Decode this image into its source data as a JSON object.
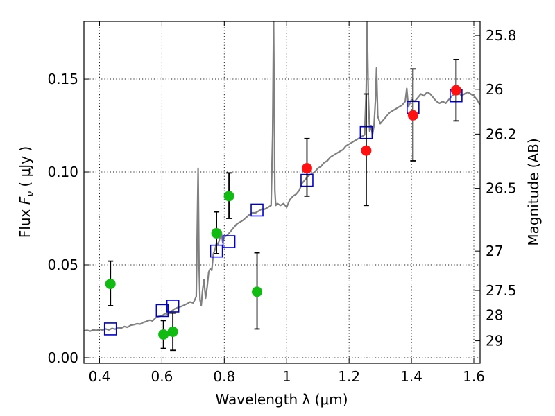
{
  "chart_data": {
    "type": "scatter",
    "xlabel": "Wavelength  λ (μm)",
    "ylabel": "Flux  F_ν  ( μJy )",
    "ylabel_parts": {
      "prefix": "Flux  ",
      "symbol": "F",
      "subscript": "ν",
      "suffix": "  ( μJy )"
    },
    "y2label": "Magnitude (AB)",
    "xlim": [
      0.35,
      1.62
    ],
    "ylim": [
      -0.003,
      0.181
    ],
    "grid": true,
    "x_ticks": [
      {
        "value": 0.4,
        "label": "0.4"
      },
      {
        "value": 0.6,
        "label": "0.6"
      },
      {
        "value": 0.8,
        "label": "0.8"
      },
      {
        "value": 1.0,
        "label": "1"
      },
      {
        "value": 1.2,
        "label": "1.2"
      },
      {
        "value": 1.4,
        "label": "1.4"
      },
      {
        "value": 1.6,
        "label": "1.6"
      }
    ],
    "y_ticks": [
      {
        "value": 0.0,
        "label": "0.00"
      },
      {
        "value": 0.05,
        "label": "0.05"
      },
      {
        "value": 0.1,
        "label": "0.10"
      },
      {
        "value": 0.15,
        "label": "0.15"
      }
    ],
    "y2_ticks": [
      {
        "flux": 0.1735,
        "label": "25.8"
      },
      {
        "flux": 0.1445,
        "label": "26"
      },
      {
        "flux": 0.1204,
        "label": "26.2"
      },
      {
        "flux": 0.0912,
        "label": "26.5"
      },
      {
        "flux": 0.0574,
        "label": "27"
      },
      {
        "flux": 0.0362,
        "label": "27.5"
      },
      {
        "flux": 0.0229,
        "label": "28"
      },
      {
        "flux": 0.0091,
        "label": "29"
      }
    ],
    "series": [
      {
        "type": "line",
        "color": "#808080",
        "points": [
          [
            0.35,
            0.0145
          ],
          [
            0.36,
            0.0148
          ],
          [
            0.37,
            0.0143
          ],
          [
            0.38,
            0.015
          ],
          [
            0.39,
            0.0147
          ],
          [
            0.4,
            0.0152
          ],
          [
            0.41,
            0.0149
          ],
          [
            0.42,
            0.0155
          ],
          [
            0.43,
            0.015
          ],
          [
            0.44,
            0.0158
          ],
          [
            0.45,
            0.0154
          ],
          [
            0.46,
            0.0162
          ],
          [
            0.47,
            0.016
          ],
          [
            0.48,
            0.0168
          ],
          [
            0.49,
            0.0164
          ],
          [
            0.5,
            0.0175
          ],
          [
            0.51,
            0.0178
          ],
          [
            0.52,
            0.0183
          ],
          [
            0.53,
            0.0181
          ],
          [
            0.54,
            0.019
          ],
          [
            0.55,
            0.0195
          ],
          [
            0.56,
            0.0202
          ],
          [
            0.57,
            0.0198
          ],
          [
            0.58,
            0.0215
          ],
          [
            0.59,
            0.0222
          ],
          [
            0.6,
            0.0225
          ],
          [
            0.61,
            0.0238
          ],
          [
            0.62,
            0.0232
          ],
          [
            0.63,
            0.025
          ],
          [
            0.64,
            0.0262
          ],
          [
            0.65,
            0.027
          ],
          [
            0.66,
            0.0275
          ],
          [
            0.67,
            0.0282
          ],
          [
            0.68,
            0.029
          ],
          [
            0.69,
            0.03
          ],
          [
            0.7,
            0.0295
          ],
          [
            0.705,
            0.031
          ],
          [
            0.71,
            0.033
          ],
          [
            0.713,
            0.066
          ],
          [
            0.716,
            0.102
          ],
          [
            0.719,
            0.05
          ],
          [
            0.722,
            0.031
          ],
          [
            0.726,
            0.028
          ],
          [
            0.73,
            0.036
          ],
          [
            0.735,
            0.042
          ],
          [
            0.74,
            0.032
          ],
          [
            0.745,
            0.038
          ],
          [
            0.75,
            0.046
          ],
          [
            0.755,
            0.048
          ],
          [
            0.76,
            0.047
          ],
          [
            0.765,
            0.056
          ],
          [
            0.77,
            0.058
          ],
          [
            0.775,
            0.062
          ],
          [
            0.78,
            0.061
          ],
          [
            0.785,
            0.064
          ],
          [
            0.79,
            0.068
          ],
          [
            0.795,
            0.062
          ],
          [
            0.8,
            0.065
          ],
          [
            0.81,
            0.066
          ],
          [
            0.82,
            0.068
          ],
          [
            0.83,
            0.07
          ],
          [
            0.84,
            0.072
          ],
          [
            0.85,
            0.073
          ],
          [
            0.86,
            0.074
          ],
          [
            0.87,
            0.0755
          ],
          [
            0.88,
            0.077
          ],
          [
            0.89,
            0.078
          ],
          [
            0.9,
            0.078
          ],
          [
            0.91,
            0.079
          ],
          [
            0.92,
            0.08
          ],
          [
            0.93,
            0.08
          ],
          [
            0.94,
            0.081
          ],
          [
            0.95,
            0.082
          ],
          [
            0.955,
            0.12
          ],
          [
            0.958,
            0.182
          ],
          [
            0.962,
            0.09
          ],
          [
            0.965,
            0.082
          ],
          [
            0.97,
            0.083
          ],
          [
            0.98,
            0.082
          ],
          [
            0.99,
            0.083
          ],
          [
            1.0,
            0.081
          ],
          [
            1.01,
            0.085
          ],
          [
            1.02,
            0.087
          ],
          [
            1.03,
            0.088
          ],
          [
            1.04,
            0.09
          ],
          [
            1.05,
            0.094
          ],
          [
            1.06,
            0.096
          ],
          [
            1.07,
            0.098
          ],
          [
            1.08,
            0.099
          ],
          [
            1.09,
            0.1
          ],
          [
            1.1,
            0.102
          ],
          [
            1.11,
            0.103
          ],
          [
            1.12,
            0.105
          ],
          [
            1.13,
            0.106
          ],
          [
            1.14,
            0.108
          ],
          [
            1.15,
            0.109
          ],
          [
            1.16,
            0.11
          ],
          [
            1.17,
            0.111
          ],
          [
            1.18,
            0.112
          ],
          [
            1.19,
            0.114
          ],
          [
            1.2,
            0.115
          ],
          [
            1.21,
            0.116
          ],
          [
            1.22,
            0.117
          ],
          [
            1.23,
            0.118
          ],
          [
            1.24,
            0.119
          ],
          [
            1.25,
            0.12
          ],
          [
            1.255,
            0.145
          ],
          [
            1.258,
            0.182
          ],
          [
            1.262,
            0.14
          ],
          [
            1.266,
            0.122
          ],
          [
            1.27,
            0.125
          ],
          [
            1.275,
            0.12
          ],
          [
            1.28,
            0.125
          ],
          [
            1.285,
            0.14
          ],
          [
            1.288,
            0.156
          ],
          [
            1.292,
            0.13
          ],
          [
            1.3,
            0.126
          ],
          [
            1.31,
            0.128
          ],
          [
            1.32,
            0.13
          ],
          [
            1.33,
            0.132
          ],
          [
            1.34,
            0.133
          ],
          [
            1.35,
            0.134
          ],
          [
            1.36,
            0.135
          ],
          [
            1.37,
            0.136
          ],
          [
            1.38,
            0.138
          ],
          [
            1.385,
            0.145
          ],
          [
            1.39,
            0.135
          ],
          [
            1.4,
            0.139
          ],
          [
            1.41,
            0.138
          ],
          [
            1.42,
            0.14
          ],
          [
            1.43,
            0.142
          ],
          [
            1.44,
            0.141
          ],
          [
            1.45,
            0.143
          ],
          [
            1.46,
            0.142
          ],
          [
            1.47,
            0.14
          ],
          [
            1.48,
            0.138
          ],
          [
            1.49,
            0.137
          ],
          [
            1.5,
            0.138
          ],
          [
            1.51,
            0.137
          ],
          [
            1.52,
            0.139
          ],
          [
            1.53,
            0.141
          ],
          [
            1.54,
            0.142
          ],
          [
            1.55,
            0.143
          ],
          [
            1.56,
            0.141
          ],
          [
            1.57,
            0.142
          ],
          [
            1.58,
            0.143
          ],
          [
            1.59,
            0.142
          ],
          [
            1.6,
            0.141
          ],
          [
            1.61,
            0.139
          ],
          [
            1.62,
            0.136
          ]
        ]
      },
      {
        "type": "scatter",
        "marker": "square-open",
        "color": "#0000cc",
        "points": [
          [
            0.435,
            0.0155
          ],
          [
            0.601,
            0.0254
          ],
          [
            0.635,
            0.0278
          ],
          [
            0.775,
            0.0574
          ],
          [
            0.815,
            0.0625
          ],
          [
            0.905,
            0.0795
          ],
          [
            1.065,
            0.0955
          ],
          [
            1.255,
            0.1212
          ],
          [
            1.405,
            0.1348
          ],
          [
            1.543,
            0.141
          ]
        ]
      },
      {
        "type": "scatter",
        "marker": "circle",
        "color": "#11bb11",
        "points": [
          {
            "x": 0.435,
            "y": 0.0397,
            "yerr_low": 0.028,
            "yerr_high": 0.052
          },
          {
            "x": 0.605,
            "y": 0.0125,
            "yerr_low": 0.005,
            "yerr_high": 0.02
          },
          {
            "x": 0.635,
            "y": 0.014,
            "yerr_low": 0.004,
            "yerr_high": 0.024
          },
          {
            "x": 0.775,
            "y": 0.067,
            "yerr_low": 0.056,
            "yerr_high": 0.0785
          },
          {
            "x": 0.815,
            "y": 0.087,
            "yerr_low": 0.075,
            "yerr_high": 0.0995
          },
          {
            "x": 0.905,
            "y": 0.0355,
            "yerr_low": 0.0155,
            "yerr_high": 0.0565
          }
        ]
      },
      {
        "type": "scatter",
        "marker": "circle",
        "color": "#ff1111",
        "points": [
          {
            "x": 1.065,
            "y": 0.102,
            "yerr_low": 0.087,
            "yerr_high": 0.118
          },
          {
            "x": 1.255,
            "y": 0.1115,
            "yerr_low": 0.082,
            "yerr_high": 0.142
          },
          {
            "x": 1.405,
            "y": 0.1305,
            "yerr_low": 0.106,
            "yerr_high": 0.1555
          },
          {
            "x": 1.543,
            "y": 0.144,
            "yerr_low": 0.1275,
            "yerr_high": 0.1605
          }
        ]
      }
    ]
  }
}
